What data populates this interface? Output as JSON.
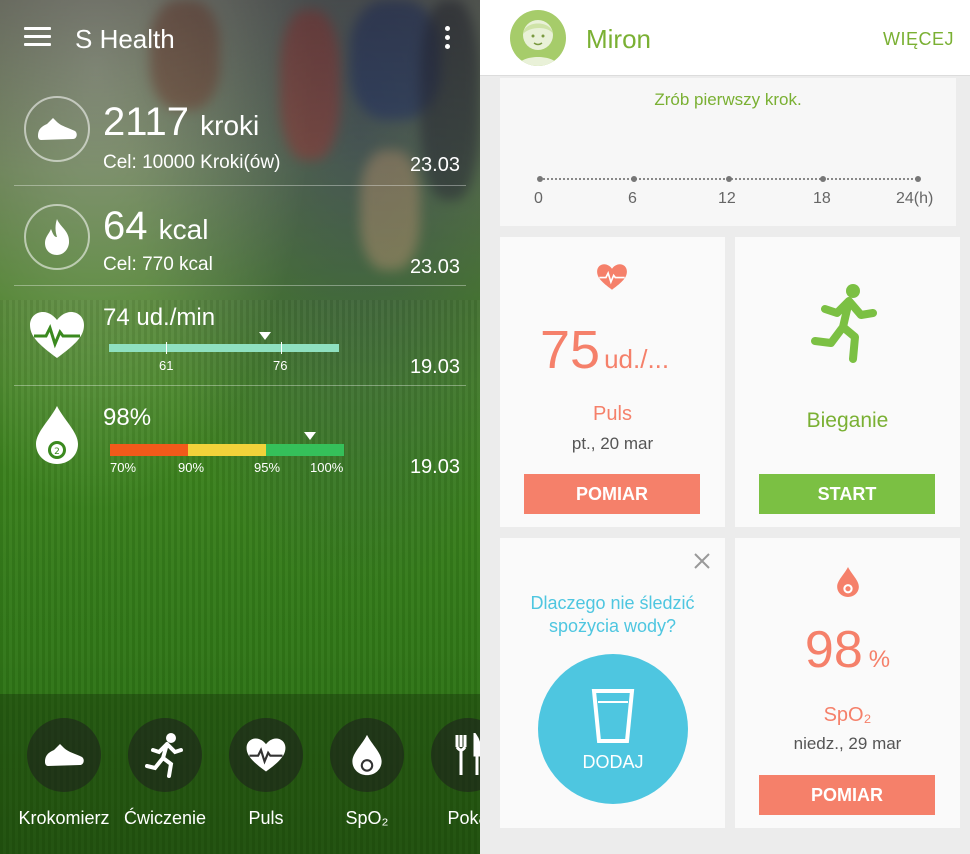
{
  "left": {
    "app_title": "S Health",
    "steps": {
      "value": "2117",
      "unit": "kroki",
      "goal": "Cel: 10000 Kroki(ów)",
      "date": "23.03"
    },
    "calories": {
      "value": "64",
      "unit": "kcal",
      "goal": "Cel: 770 kcal",
      "date": "23.03"
    },
    "heart_rate": {
      "value": "74 ud./min",
      "tick_low": "61",
      "tick_high": "76",
      "date": "19.03"
    },
    "spo2": {
      "value": "98%",
      "ticks": [
        "70%",
        "90%",
        "95%",
        "100%"
      ],
      "date": "19.03"
    },
    "nav": [
      {
        "label": "Krokomierz",
        "icon": "shoe-icon"
      },
      {
        "label": "Ćwiczenie",
        "icon": "runner-icon"
      },
      {
        "label": "Puls",
        "icon": "heart-pulse-icon"
      },
      {
        "label": "SpO₂",
        "icon": "spo2-drop-icon"
      },
      {
        "label": "Poka",
        "icon": "fork-knife-icon"
      }
    ],
    "colors": {
      "spo2_red": "#f25a1a",
      "spo2_yellow": "#f2d23a",
      "spo2_green": "#35c05a",
      "hr_bar": "#8fe0c0"
    }
  },
  "right": {
    "user_name": "Miron",
    "more_label": "WIĘCEJ",
    "steps_message": "Zrób pierwszy krok.",
    "axis_labels": [
      "0",
      "6",
      "12",
      "18",
      "24(h)"
    ],
    "pulse_card": {
      "value": "75",
      "unit": "ud./...",
      "title": "Puls",
      "date": "pt., 20 mar",
      "button": "POMIAR"
    },
    "running_card": {
      "title": "Bieganie",
      "button": "START"
    },
    "water_card": {
      "question": "Dlaczego nie śledzić spożycia wody?",
      "button": "DODAJ"
    },
    "spo2_card": {
      "value": "98",
      "unit": "%",
      "title": "SpO₂",
      "date": "niedz., 29 mar",
      "button": "POMIAR"
    },
    "colors": {
      "accent_green": "#7ab033",
      "orange": "#f5806a",
      "green_button": "#7bc043",
      "water": "#4ec6e0"
    }
  }
}
